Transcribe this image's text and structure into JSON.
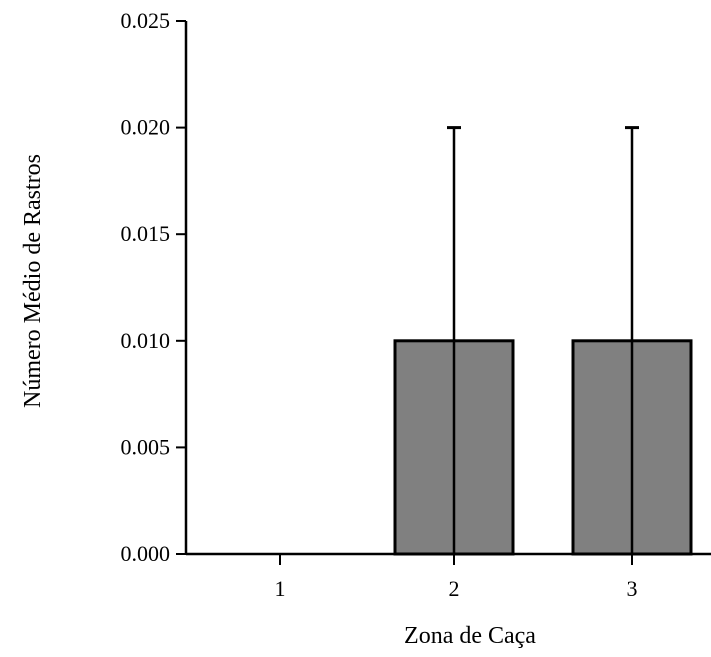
{
  "chart_data": {
    "type": "bar",
    "title": "",
    "xlabel": "Zona de Caça",
    "ylabel": "Número Médio de Rastros",
    "categories": [
      "1",
      "2",
      "3"
    ],
    "values": [
      0.0,
      0.01,
      0.01
    ],
    "error_upper": [
      0.0,
      0.02,
      0.02
    ],
    "error_lower": [
      0.0,
      0.0,
      0.0
    ],
    "ylim": [
      0,
      0.025
    ],
    "yticks": [
      0.0,
      0.005,
      0.01,
      0.015,
      0.02,
      0.025
    ],
    "ytick_labels": [
      "0.000",
      "0.005",
      "0.010",
      "0.015",
      "0.020",
      "0.025"
    ],
    "grid": false,
    "legend": "none",
    "colors": {
      "bar_fill": "#808080",
      "bar_stroke": "#000000",
      "axis": "#000000"
    }
  }
}
